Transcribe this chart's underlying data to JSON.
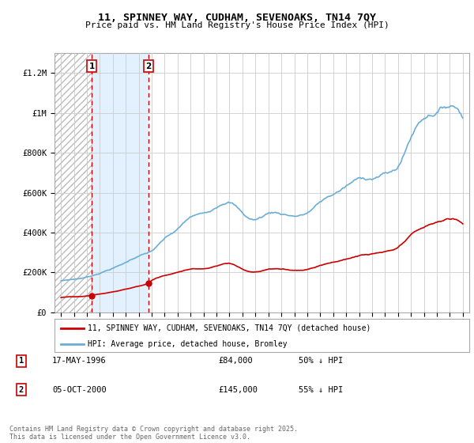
{
  "title": "11, SPINNEY WAY, CUDHAM, SEVENOAKS, TN14 7QY",
  "subtitle": "Price paid vs. HM Land Registry's House Price Index (HPI)",
  "ylabel_ticks": [
    "£0",
    "£200K",
    "£400K",
    "£600K",
    "£800K",
    "£1M",
    "£1.2M"
  ],
  "ylim": [
    0,
    1300000
  ],
  "xlim_start": 1993.5,
  "xlim_end": 2025.5,
  "background_color": "#ffffff",
  "plot_bg_color": "#ffffff",
  "grid_color": "#cccccc",
  "legend_label_red": "11, SPINNEY WAY, CUDHAM, SEVENOAKS, TN14 7QY (detached house)",
  "legend_label_blue": "HPI: Average price, detached house, Bromley",
  "transactions": [
    {
      "num": 1,
      "date": "17-MAY-1996",
      "price": 84000,
      "hpi_note": "50% ↓ HPI",
      "year": 1996.37
    },
    {
      "num": 2,
      "date": "05-OCT-2000",
      "price": 145000,
      "hpi_note": "55% ↓ HPI",
      "year": 2000.76
    }
  ],
  "footer": "Contains HM Land Registry data © Crown copyright and database right 2025.\nThis data is licensed under the Open Government Licence v3.0.",
  "red_color": "#cc0000",
  "blue_color": "#6aaed6",
  "trans_color": "#cc0000",
  "hatch_color": "#bbbbbb"
}
